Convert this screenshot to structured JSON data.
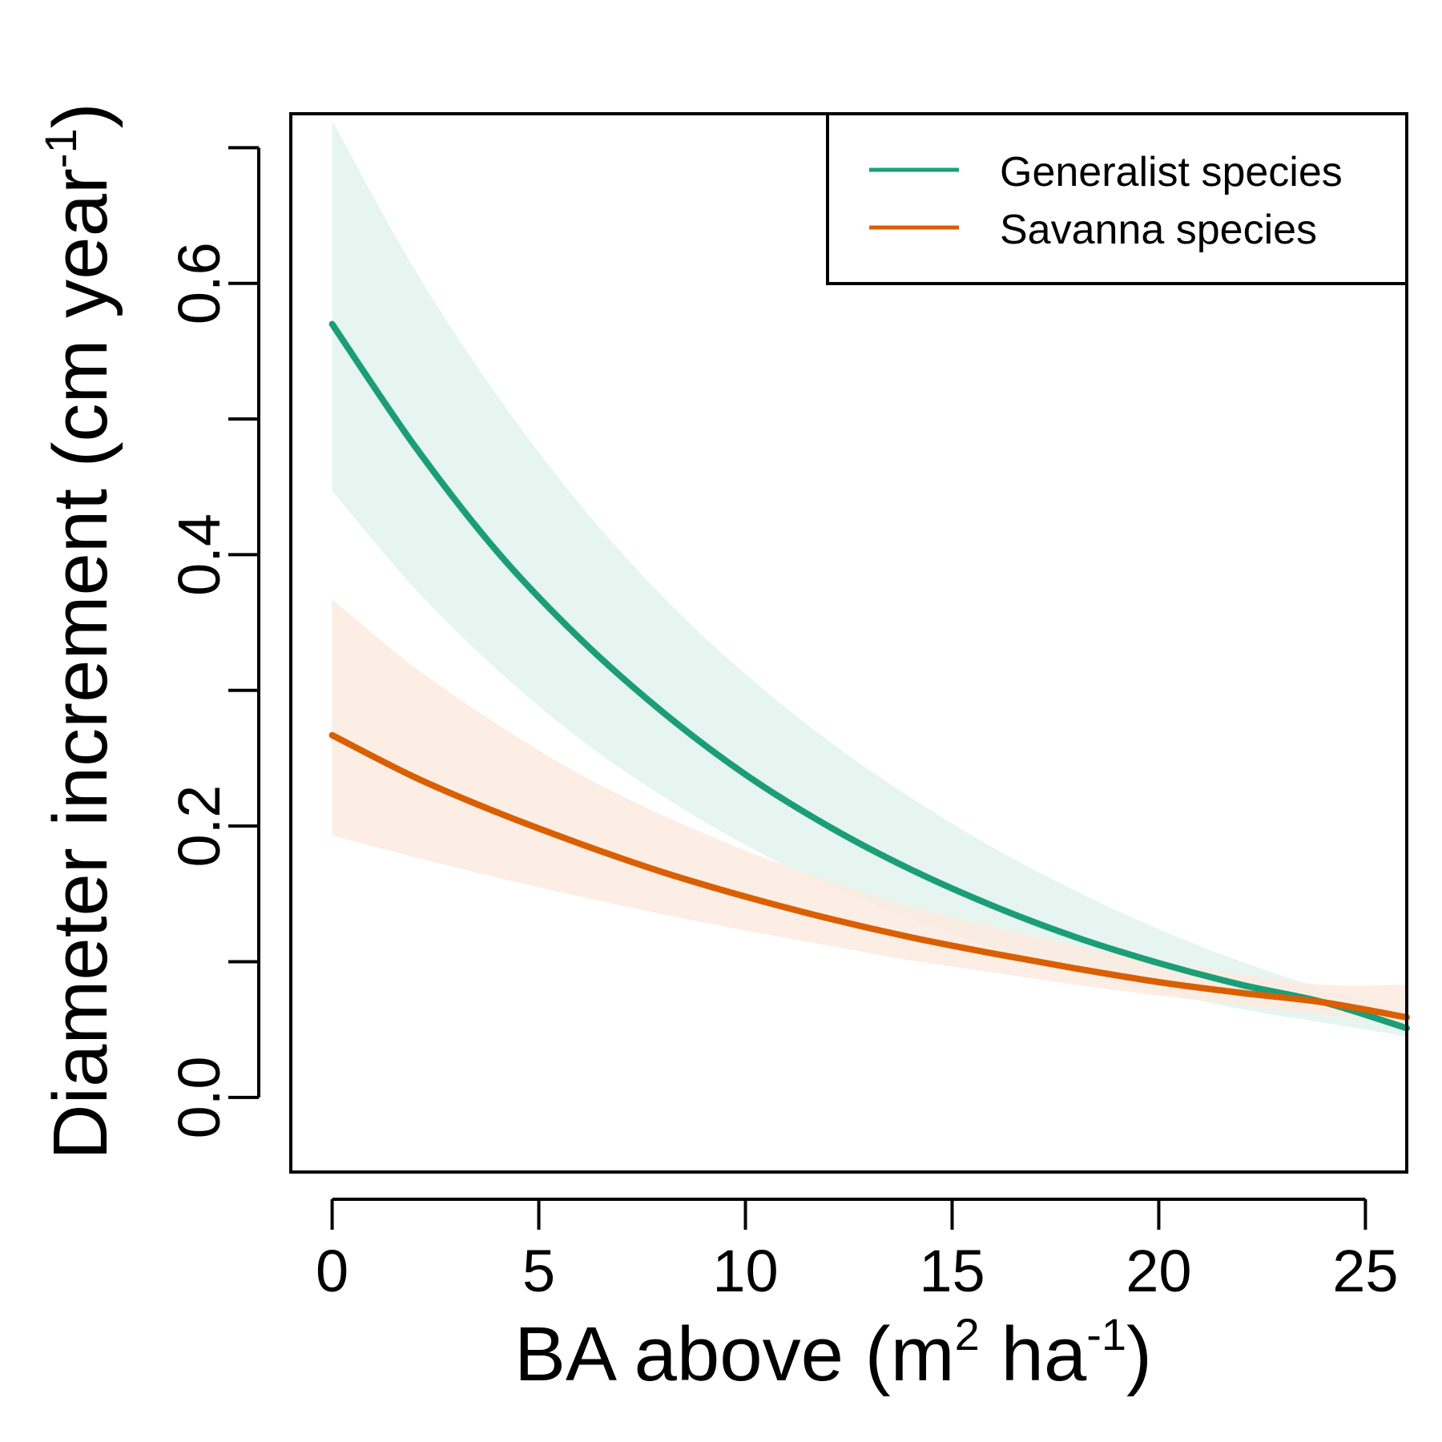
{
  "chart_data": {
    "type": "line",
    "xlabel": {
      "base": "BA above (m",
      "sup1": "2",
      "mid": " ha",
      "sup2": "-1",
      "end": ")"
    },
    "ylabel": {
      "base": "Diameter increment (cm year",
      "sup": "-1",
      "end": ")"
    },
    "xlim": [
      -1,
      26
    ],
    "ylim": [
      -0.055,
      0.725
    ],
    "xticks": [
      0,
      5,
      10,
      15,
      20,
      25
    ],
    "xtick_labels": [
      "0",
      "5",
      "10",
      "15",
      "20",
      "25"
    ],
    "yticks": [
      0.0,
      0.1,
      0.2,
      0.3,
      0.4,
      0.5,
      0.6,
      0.7
    ],
    "ytick_labels": [
      "0.0",
      "",
      "0.2",
      "",
      "0.4",
      "",
      "0.6",
      ""
    ],
    "grid": false,
    "legend_position": "top-right",
    "series": [
      {
        "name": "Generalist species",
        "color": "#1b9e77",
        "band_color": "#e3f3ee",
        "x": [
          0,
          2,
          4,
          6,
          8,
          10,
          12,
          14,
          16,
          18,
          20,
          22,
          24,
          26
        ],
        "fit": [
          0.57,
          0.48,
          0.402,
          0.338,
          0.284,
          0.238,
          0.2,
          0.168,
          0.141,
          0.118,
          0.099,
          0.083,
          0.07,
          0.051
        ],
        "lower": [
          0.447,
          0.375,
          0.315,
          0.264,
          0.222,
          0.186,
          0.156,
          0.131,
          0.11,
          0.093,
          0.078,
          0.065,
          0.055,
          0.045
        ],
        "upper": [
          0.72,
          0.61,
          0.517,
          0.437,
          0.369,
          0.312,
          0.263,
          0.221,
          0.184,
          0.152,
          0.124,
          0.1,
          0.08,
          0.064
        ]
      },
      {
        "name": "Savanna species",
        "color": "#d95f02",
        "band_color": "#fbebe0",
        "x": [
          0,
          2,
          4,
          6,
          8,
          10,
          12,
          14,
          16,
          18,
          20,
          22,
          24,
          26
        ],
        "fit": [
          0.267,
          0.236,
          0.21,
          0.187,
          0.166,
          0.148,
          0.132,
          0.118,
          0.106,
          0.095,
          0.085,
          0.077,
          0.07,
          0.059
        ],
        "lower": [
          0.193,
          0.177,
          0.162,
          0.148,
          0.135,
          0.123,
          0.112,
          0.101,
          0.092,
          0.083,
          0.075,
          0.068,
          0.061,
          0.055
        ],
        "upper": [
          0.367,
          0.317,
          0.275,
          0.238,
          0.208,
          0.182,
          0.16,
          0.141,
          0.126,
          0.112,
          0.1,
          0.091,
          0.083,
          0.083
        ]
      }
    ]
  }
}
